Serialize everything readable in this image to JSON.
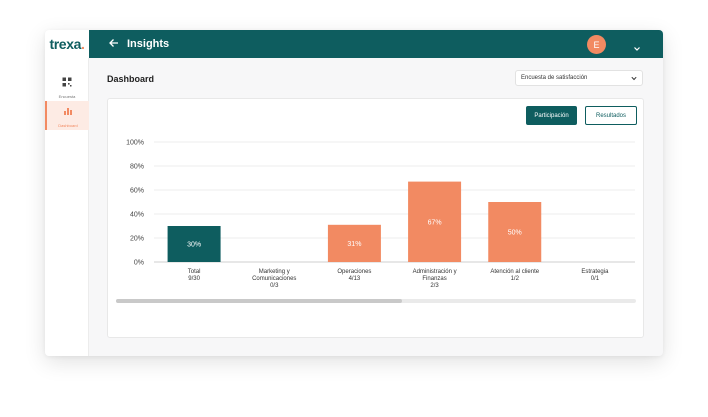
{
  "brand": {
    "name": "trexa",
    "dot": "."
  },
  "topbar": {
    "back_icon": "arrow-left-icon",
    "title": "Insights",
    "avatar_initial": "E",
    "menu_icon": "chevron-down-icon"
  },
  "sidebar": {
    "items": [
      {
        "label": "Encuesta",
        "icon": "grid-icon",
        "active": false
      },
      {
        "label": "Dashboard",
        "icon": "bar-chart-icon",
        "active": true
      }
    ]
  },
  "main": {
    "title": "Dashboard",
    "survey_select": {
      "value": "Encuesta de satisfacción"
    },
    "buttons": {
      "participation": "Participación",
      "results": "Resultados"
    }
  },
  "colors": {
    "teal": "#0e5d5f",
    "orange": "#f28a62"
  },
  "chart_data": {
    "type": "bar",
    "yticks": [
      "100%",
      "80%",
      "60%",
      "40%",
      "20%",
      "0%"
    ],
    "ylim": [
      0,
      100
    ],
    "grid": true,
    "categories": [
      {
        "name": [
          "Total"
        ],
        "count": "9/30",
        "value": 30,
        "label": "30%",
        "color": "#0e5d5f"
      },
      {
        "name": [
          "Marketing y",
          "Comunicaciones"
        ],
        "count": "0/3",
        "value": 0,
        "label": "",
        "color": "#f28a62"
      },
      {
        "name": [
          "Operaciones"
        ],
        "count": "4/13",
        "value": 31,
        "label": "31%",
        "color": "#f28a62"
      },
      {
        "name": [
          "Administración y",
          "Finanzas"
        ],
        "count": "2/3",
        "value": 67,
        "label": "67%",
        "color": "#f28a62"
      },
      {
        "name": [
          "Atención al cliente"
        ],
        "count": "1/2",
        "value": 50,
        "label": "50%",
        "color": "#f28a62"
      },
      {
        "name": [
          "Estrategia"
        ],
        "count": "0/1",
        "value": 0,
        "label": "",
        "color": "#f28a62"
      }
    ]
  }
}
